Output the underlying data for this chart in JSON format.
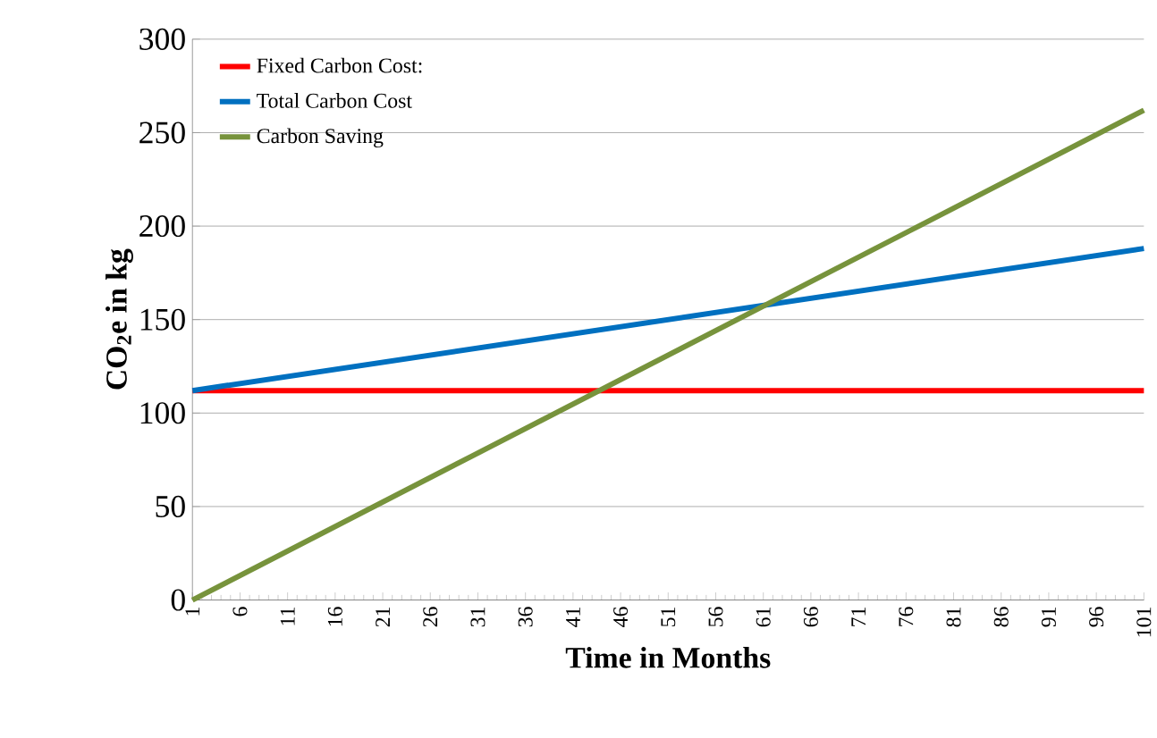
{
  "chart_data": {
    "type": "line",
    "xlabel": "Time in Months",
    "ylabel": "CO$_{2}$e in kg",
    "xlim": [
      1,
      101
    ],
    "xticks": [
      1,
      6,
      11,
      16,
      21,
      26,
      31,
      36,
      41,
      46,
      51,
      56,
      61,
      66,
      71,
      76,
      81,
      86,
      91,
      96,
      101
    ],
    "x": [
      1,
      101
    ],
    "ylim": [
      0,
      300
    ],
    "yticks": [
      0,
      50,
      100,
      150,
      200,
      250,
      300
    ],
    "grid": "y",
    "legend": "top left",
    "marker": "none",
    "line_style": "solid",
    "series": [
      {
        "name": "Fixed Carbon Cost:",
        "color": "#ff0000",
        "values": [
          112,
          112
        ]
      },
      {
        "name": "Total Carbon Cost",
        "color": "#0070c0",
        "values": [
          112,
          188
        ]
      },
      {
        "name": "Carbon Saving",
        "color": "#77933c",
        "values": [
          0,
          262
        ]
      }
    ]
  }
}
